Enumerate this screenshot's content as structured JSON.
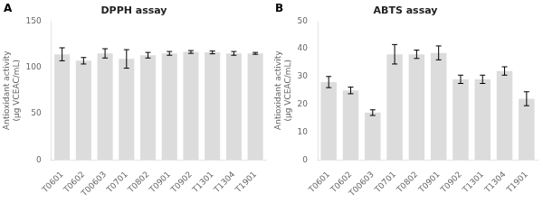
{
  "chart_data": [
    {
      "type": "bar",
      "title": "DPPH assay",
      "annotations": [
        "A"
      ],
      "categories": [
        "T0601",
        "T0602",
        "T00603",
        "T0701",
        "T0802",
        "T0901",
        "T0902",
        "T1301",
        "T1304",
        "T1901"
      ],
      "values": [
        114.0,
        107.0,
        115.0,
        109.0,
        113.0,
        115.0,
        116.5,
        116.0,
        115.0,
        115.0
      ],
      "errors": [
        7.0,
        3.5,
        5.0,
        10.0,
        3.0,
        2.0,
        1.5,
        1.5,
        2.0,
        1.0
      ],
      "ylabel": "Antioxidant activity\n(µg VCEAC/mL)",
      "color": "#dcdcdc",
      "ylim": [
        0,
        150
      ],
      "yticks": [
        0,
        50,
        100,
        150
      ],
      "grid": false
    },
    {
      "type": "bar",
      "title": "ABTS assay",
      "annotations": [
        "B"
      ],
      "categories": [
        "T0601",
        "T0602",
        "T00603",
        "T0701",
        "T0802",
        "T0901",
        "T0902",
        "T1301",
        "T1304",
        "T1901"
      ],
      "values": [
        28.0,
        25.0,
        17.0,
        38.0,
        38.0,
        38.5,
        29.0,
        29.0,
        32.0,
        22.0
      ],
      "errors": [
        2.0,
        1.2,
        1.0,
        3.5,
        1.5,
        2.5,
        1.5,
        1.5,
        1.5,
        2.5
      ],
      "ylabel": "Antioxidant activity\n(µg VCEAC/mL)",
      "color": "#dcdcdc",
      "ylim": [
        0,
        50
      ],
      "yticks": [
        0,
        10,
        20,
        30,
        40,
        50
      ],
      "grid": false
    }
  ]
}
